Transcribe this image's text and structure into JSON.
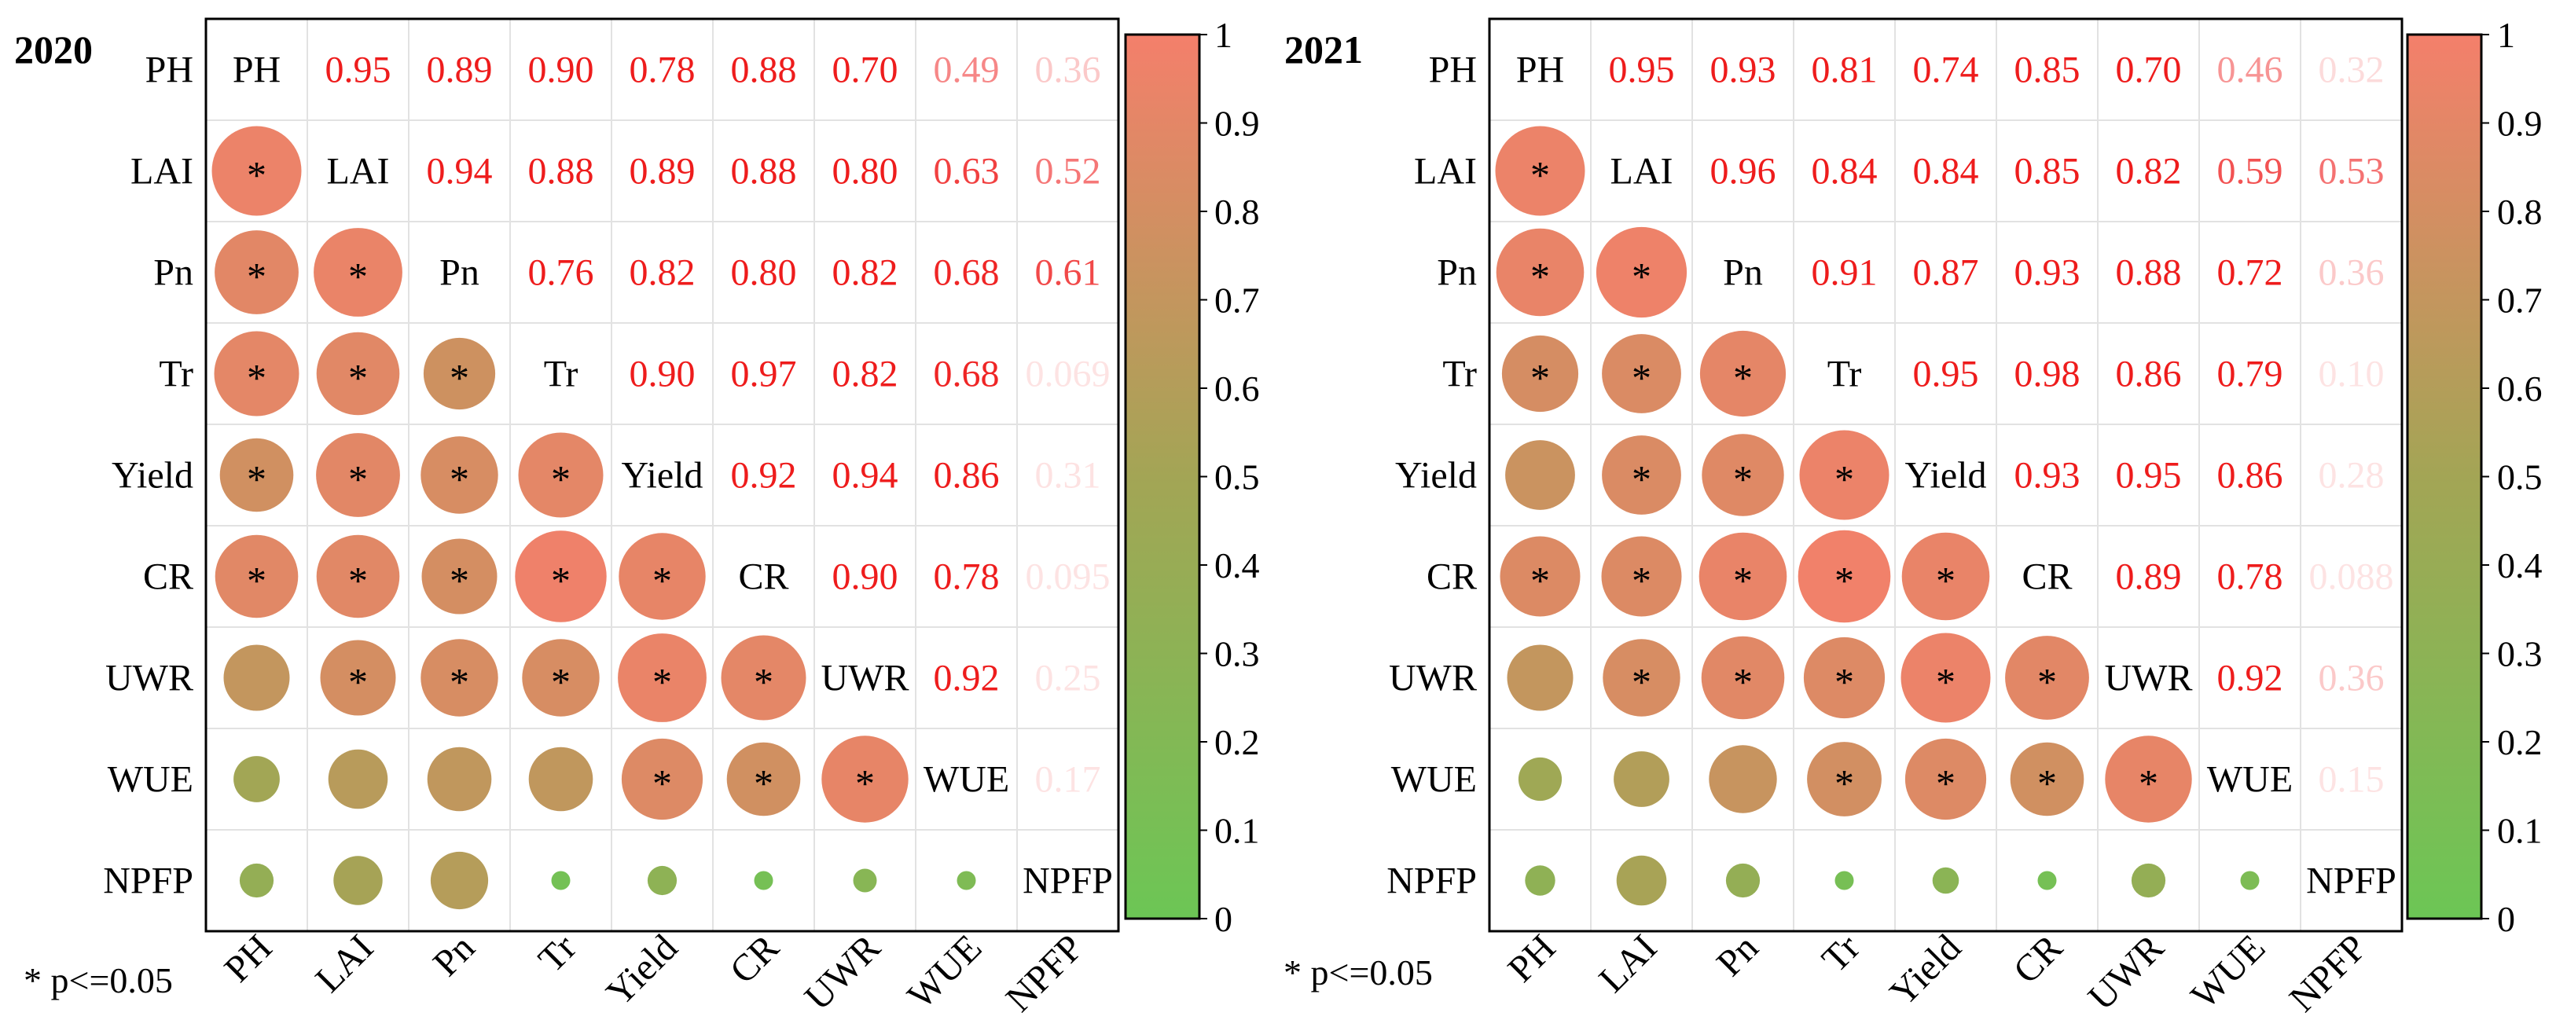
{
  "chart_data": [
    {
      "type": "heatmap",
      "title": "2020",
      "variables": [
        "PH",
        "LAI",
        "Pn",
        "Tr",
        "Yield",
        "CR",
        "UWR",
        "WUE",
        "NPFP"
      ],
      "upper_labels": [
        [
          "0.95",
          "0.89",
          "0.90",
          "0.78",
          "0.88",
          "0.70",
          "0.49",
          "0.36"
        ],
        [
          "0.94",
          "0.88",
          "0.89",
          "0.88",
          "0.80",
          "0.63",
          "0.52"
        ],
        [
          "0.76",
          "0.82",
          "0.80",
          "0.82",
          "0.68",
          "0.61"
        ],
        [
          "0.90",
          "0.97",
          "0.82",
          "0.68",
          "0.069"
        ],
        [
          "0.92",
          "0.94",
          "0.86",
          "0.31"
        ],
        [
          "0.90",
          "0.78",
          "0.095"
        ],
        [
          "0.92",
          "0.25"
        ],
        [
          "0.17"
        ]
      ],
      "significant": [
        [
          true
        ],
        [
          true,
          true
        ],
        [
          true,
          true,
          true
        ],
        [
          true,
          true,
          true,
          true
        ],
        [
          true,
          true,
          true,
          true,
          true
        ],
        [
          false,
          true,
          true,
          true,
          true,
          true
        ],
        [
          false,
          false,
          false,
          false,
          true,
          true,
          true
        ],
        [
          false,
          false,
          false,
          false,
          false,
          false,
          false,
          false
        ]
      ],
      "colorbar_ticks": [
        "0",
        "0.1",
        "0.2",
        "0.3",
        "0.4",
        "0.5",
        "0.6",
        "0.7",
        "0.8",
        "0.9",
        "1"
      ],
      "colorbar_range": [
        0,
        1
      ],
      "color_low": "#6cc655",
      "color_mid": "#a3a555",
      "color_high": "#f47f6b",
      "footnote": "* p<=0.05"
    },
    {
      "type": "heatmap",
      "title": "2021",
      "variables": [
        "PH",
        "LAI",
        "Pn",
        "Tr",
        "Yield",
        "CR",
        "UWR",
        "WUE",
        "NPFP"
      ],
      "upper_labels": [
        [
          "0.95",
          "0.93",
          "0.81",
          "0.74",
          "0.85",
          "0.70",
          "0.46",
          "0.32"
        ],
        [
          "0.96",
          "0.84",
          "0.84",
          "0.85",
          "0.82",
          "0.59",
          "0.53"
        ],
        [
          "0.91",
          "0.87",
          "0.93",
          "0.88",
          "0.72",
          "0.36"
        ],
        [
          "0.95",
          "0.98",
          "0.86",
          "0.79",
          "0.10"
        ],
        [
          "0.93",
          "0.95",
          "0.86",
          "0.28"
        ],
        [
          "0.89",
          "0.78",
          "0.088"
        ],
        [
          "0.92",
          "0.36"
        ],
        [
          "0.15"
        ]
      ],
      "significant": [
        [
          true
        ],
        [
          true,
          true
        ],
        [
          true,
          true,
          true
        ],
        [
          false,
          true,
          true,
          true
        ],
        [
          true,
          true,
          true,
          true,
          true
        ],
        [
          false,
          true,
          true,
          true,
          true,
          true
        ],
        [
          false,
          false,
          false,
          true,
          true,
          true,
          true
        ],
        [
          false,
          false,
          false,
          false,
          false,
          false,
          false,
          false
        ]
      ],
      "colorbar_ticks": [
        "0",
        "0.1",
        "0.2",
        "0.3",
        "0.4",
        "0.5",
        "0.6",
        "0.7",
        "0.8",
        "0.9",
        "1"
      ],
      "colorbar_range": [
        0,
        1
      ],
      "color_low": "#6cc655",
      "color_mid": "#a3a555",
      "color_high": "#f47f6b",
      "footnote": "* p<=0.05"
    }
  ]
}
